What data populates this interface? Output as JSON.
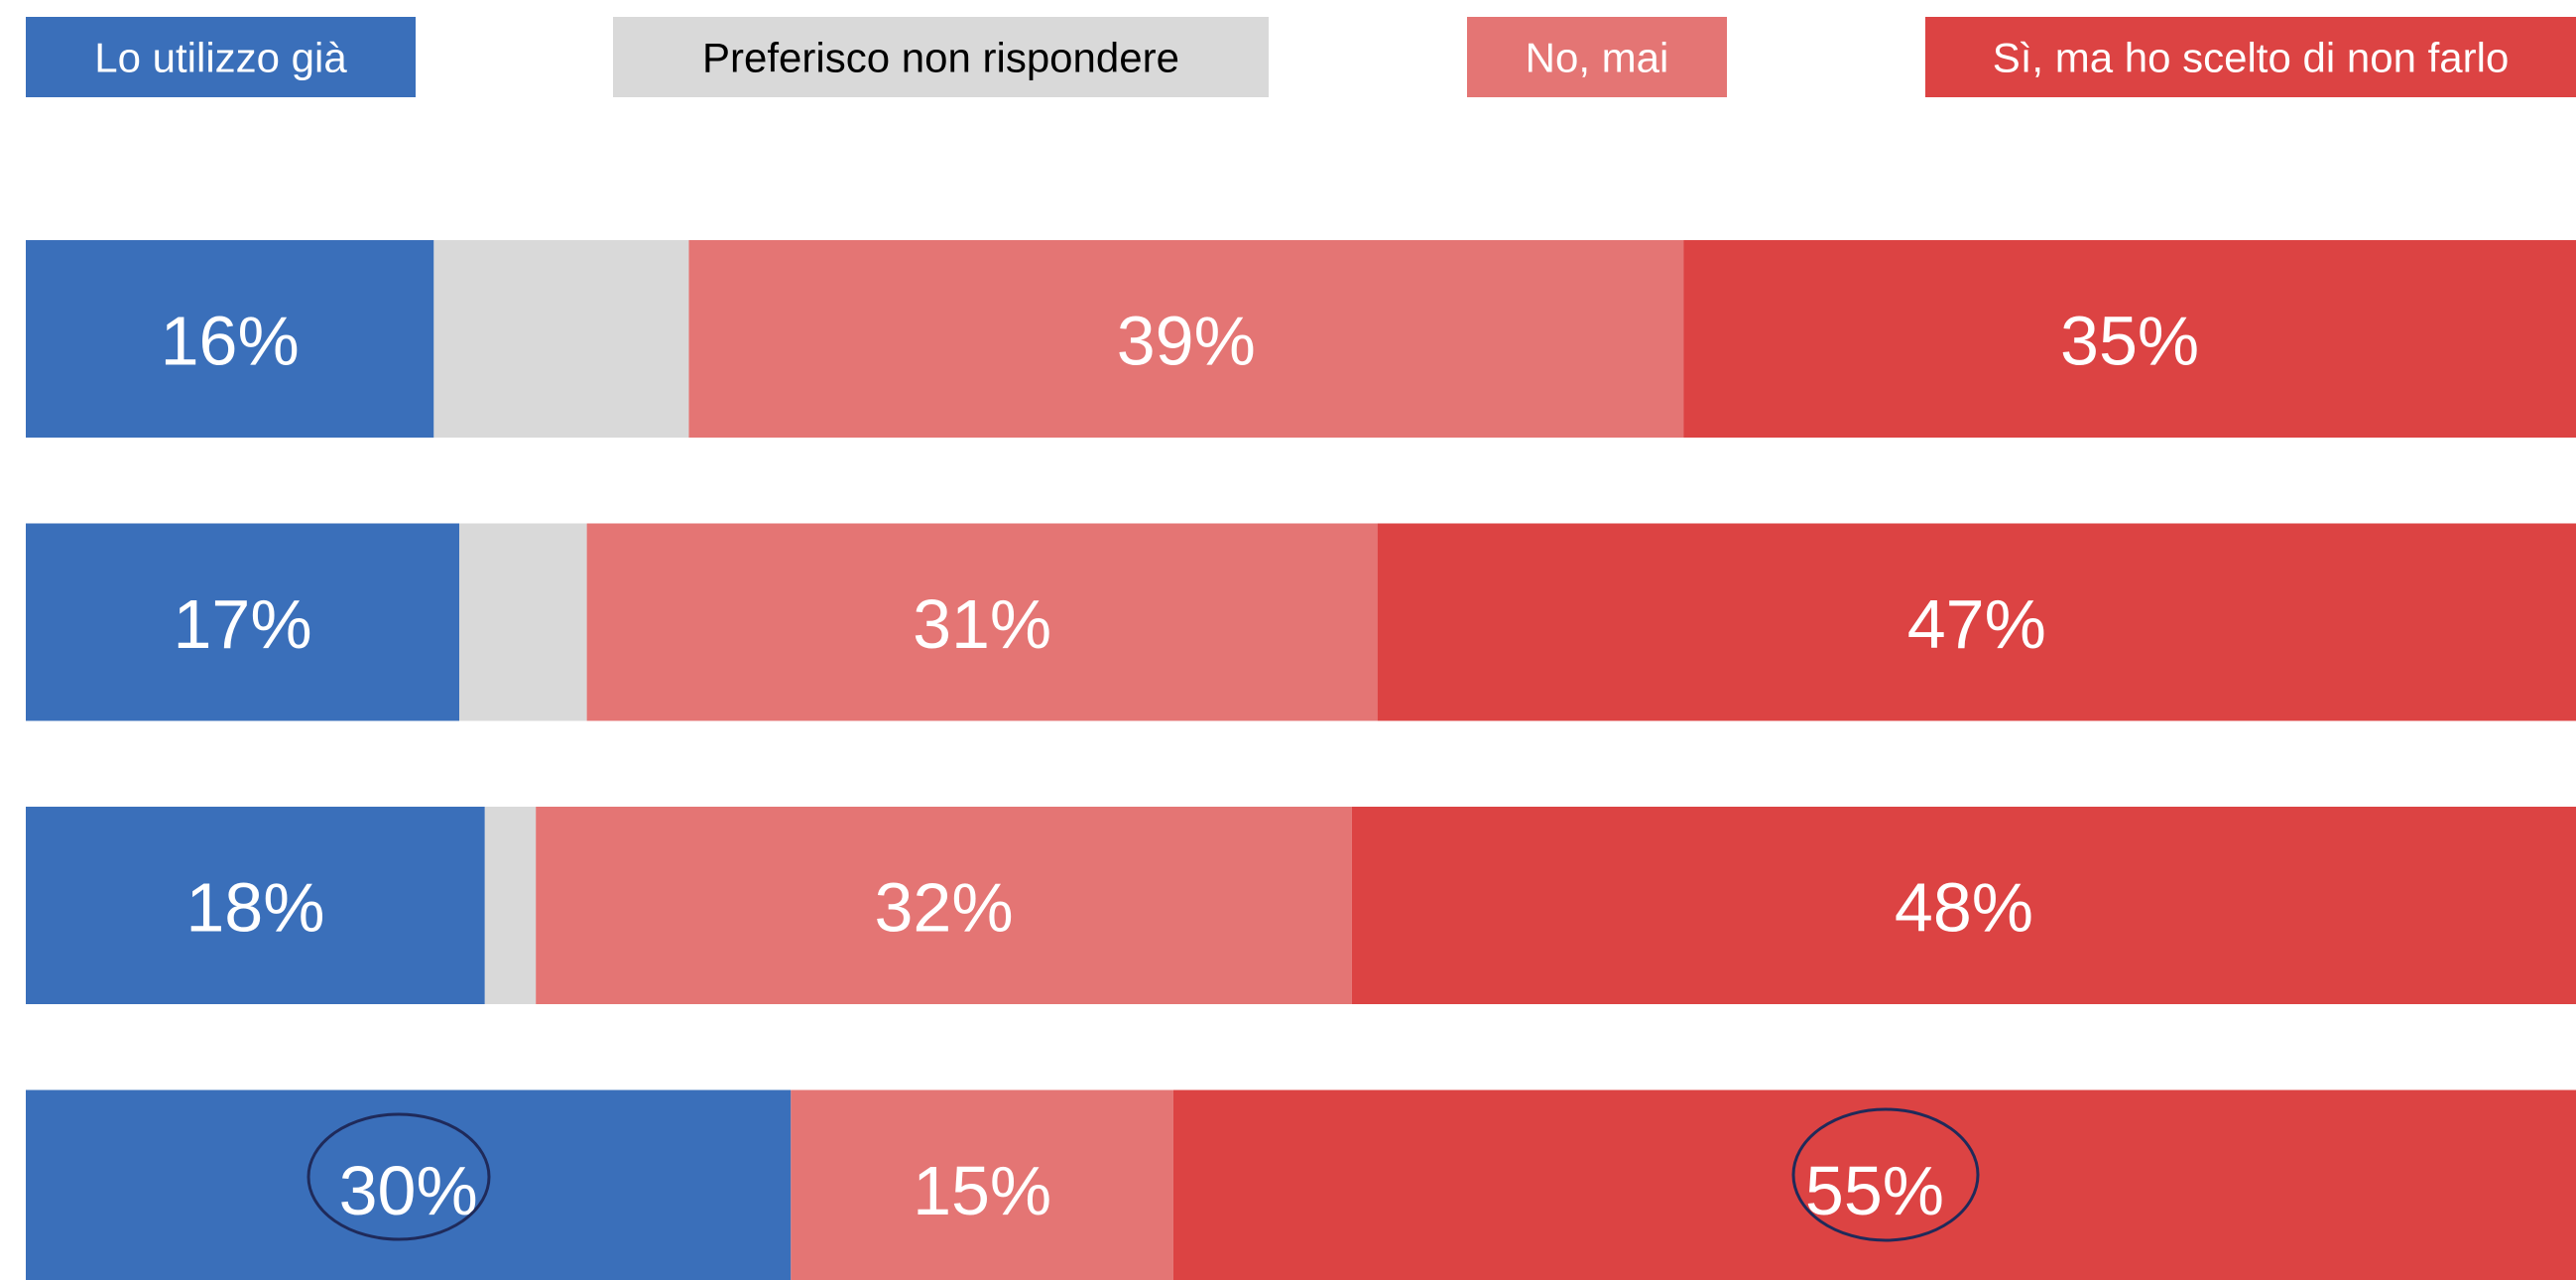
{
  "chart_data": {
    "type": "stacked_bar_horizontal",
    "categories": [
      null,
      null,
      null,
      null
    ],
    "xlim": [
      0,
      100
    ],
    "series": [
      {
        "name": "Lo utilizzo già",
        "color": "#3a6fba",
        "values": [
          16,
          17,
          18,
          30
        ],
        "value_labels": [
          "16%",
          "17%",
          "18%",
          "30%"
        ]
      },
      {
        "name": "Preferisco non rispondere",
        "color": "#d9d9d9",
        "values": [
          10,
          5,
          2,
          0
        ]
      },
      {
        "name": "No, mai",
        "color": "#e47574",
        "values": [
          39,
          31,
          32,
          15
        ],
        "value_labels": [
          "39%",
          "31%",
          "32%",
          "15%"
        ]
      },
      {
        "name": "Sì, ma ho scelto di non farlo",
        "color": "#dc4343",
        "values": [
          35,
          47,
          48,
          55
        ],
        "value_labels": [
          "35%",
          "47%",
          "48%",
          "55%"
        ]
      }
    ]
  }
}
